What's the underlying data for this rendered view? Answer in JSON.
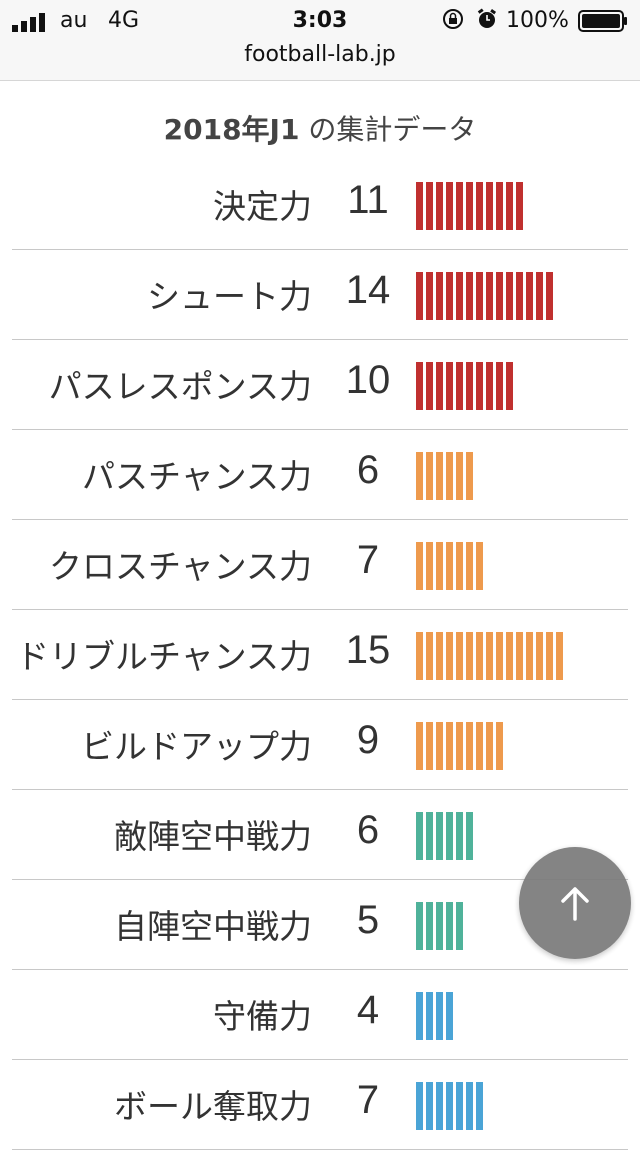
{
  "status_bar": {
    "carrier": "au",
    "network": "4G",
    "time": "3:03",
    "battery": "100%",
    "url": "football-lab.jp"
  },
  "page": {
    "title_bold": "2018年J1",
    "title_rest": " の集計データ"
  },
  "colors": {
    "red": "#c0302f",
    "orange": "#ee9a4d",
    "green": "#4fb29a",
    "blue": "#4aa4d6"
  },
  "stats": [
    {
      "label": "決定力",
      "value": "11",
      "color": "red"
    },
    {
      "label": "シュート力",
      "value": "14",
      "color": "red"
    },
    {
      "label": "パスレスポンス力",
      "value": "10",
      "color": "red"
    },
    {
      "label": "パスチャンス力",
      "value": "6",
      "color": "orange"
    },
    {
      "label": "クロスチャンス力",
      "value": "7",
      "color": "orange"
    },
    {
      "label": "ドリブルチャンス力",
      "value": "15",
      "color": "orange"
    },
    {
      "label": "ビルドアップ力",
      "value": "9",
      "color": "orange"
    },
    {
      "label": "敵陣空中戦力",
      "value": "6",
      "color": "green"
    },
    {
      "label": "自陣空中戦力",
      "value": "5",
      "color": "green"
    },
    {
      "label": "守備力",
      "value": "4",
      "color": "blue"
    },
    {
      "label": "ボール奪取力",
      "value": "7",
      "color": "blue"
    }
  ],
  "scroll_top_icon": "arrow-up-icon"
}
